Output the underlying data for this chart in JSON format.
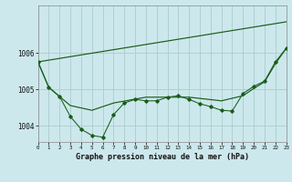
{
  "background_color": "#cce8ec",
  "grid_color": "#aacccc",
  "line_color": "#1a5c1a",
  "title": "Graphe pression niveau de la mer (hPa)",
  "xlim": [
    0,
    23
  ],
  "ylim": [
    1003.55,
    1007.3
  ],
  "yticks": [
    1004,
    1005,
    1006
  ],
  "xticks": [
    0,
    1,
    2,
    3,
    4,
    5,
    6,
    7,
    8,
    9,
    10,
    11,
    12,
    13,
    14,
    15,
    16,
    17,
    18,
    19,
    20,
    21,
    22,
    23
  ],
  "series_jagged": {
    "x": [
      0,
      1,
      2,
      3,
      4,
      5,
      6,
      7,
      8,
      9,
      10,
      11,
      12,
      13,
      14,
      15,
      16,
      17,
      18,
      19,
      20,
      21,
      22,
      23
    ],
    "y": [
      1005.75,
      1005.05,
      1004.8,
      1004.25,
      1003.9,
      1003.73,
      1003.68,
      1004.3,
      1004.62,
      1004.72,
      1004.68,
      1004.68,
      1004.78,
      1004.82,
      1004.72,
      1004.6,
      1004.52,
      1004.42,
      1004.4,
      1004.88,
      1005.08,
      1005.22,
      1005.75,
      1006.12
    ]
  },
  "series_straight": {
    "x": [
      0,
      23
    ],
    "y": [
      1005.75,
      1006.85
    ]
  },
  "series_smooth": {
    "x": [
      0,
      1,
      2,
      3,
      5,
      7,
      10,
      14,
      17,
      19,
      20,
      21,
      22,
      23
    ],
    "y": [
      1005.75,
      1005.05,
      1004.8,
      1004.55,
      1004.42,
      1004.62,
      1004.78,
      1004.78,
      1004.68,
      1004.82,
      1005.02,
      1005.2,
      1005.7,
      1006.12
    ]
  }
}
